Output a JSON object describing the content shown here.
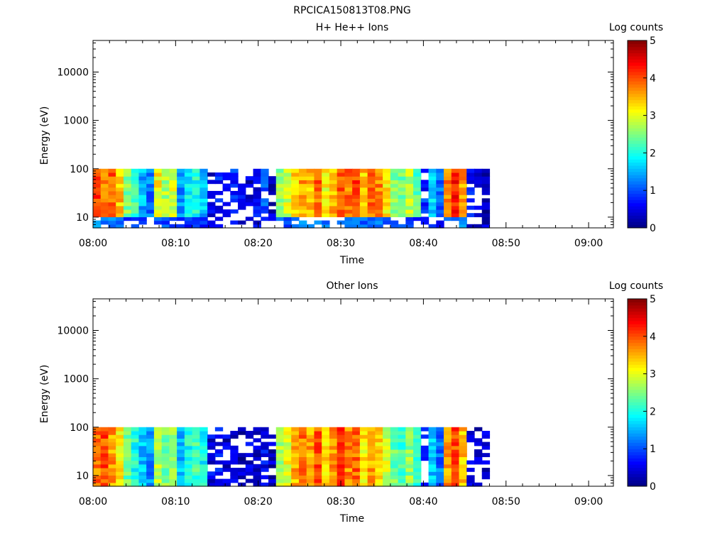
{
  "figure": {
    "title": "RPCICA150813T08.PNG"
  },
  "colorbar": {
    "label": "Log counts",
    "ticks": [
      "0",
      "1",
      "2",
      "3",
      "4",
      "5"
    ],
    "range": [
      0,
      5
    ],
    "colormap": "jet"
  },
  "chart_data": [
    {
      "type": "heatmap",
      "title": "H+ He++ Ions",
      "xlabel": "Time",
      "ylabel": "Energy (eV)",
      "x_ticks": [
        "08:00",
        "08:10",
        "08:20",
        "08:30",
        "08:40",
        "08:50",
        "09:00"
      ],
      "y_ticks": [
        "10",
        "100",
        "1000",
        "10000"
      ],
      "y_scale": "log",
      "ylim": [
        6,
        45000
      ],
      "xlim": [
        "08:00",
        "09:03"
      ],
      "energy_range_ev": [
        6,
        100
      ],
      "data_time_range": [
        "08:00",
        "08:48"
      ],
      "columns_log_counts": [
        4.1,
        3.8,
        3.9,
        3.4,
        2.5,
        2.2,
        1.5,
        1.2,
        3.1,
        2.7,
        2.9,
        1.4,
        1.8,
        2.0,
        1.6,
        0.4,
        0.7,
        0.6,
        0.8,
        0.5,
        0.4,
        0.6,
        1.0,
        0.4,
        2.6,
        2.9,
        3.3,
        3.6,
        3.4,
        3.9,
        3.1,
        3.5,
        4.0,
        3.8,
        4.1,
        3.4,
        3.9,
        3.7,
        3.2,
        2.6,
        2.4,
        2.8,
        2.3,
        0.8,
        1.7,
        1.1,
        3.8,
        4.3,
        3.6,
        0.6,
        0.5,
        0.3
      ],
      "color_scale": "Log counts"
    },
    {
      "type": "heatmap",
      "title": "Other Ions",
      "xlabel": "Time",
      "ylabel": "Energy (eV)",
      "x_ticks": [
        "08:00",
        "08:10",
        "08:20",
        "08:30",
        "08:40",
        "08:50",
        "09:00"
      ],
      "y_ticks": [
        "10",
        "100",
        "1000",
        "10000"
      ],
      "y_scale": "log",
      "ylim": [
        6,
        45000
      ],
      "xlim": [
        "08:00",
        "09:03"
      ],
      "energy_range_ev": [
        6,
        100
      ],
      "data_time_range": [
        "08:00",
        "08:48"
      ],
      "columns_log_counts": [
        3.8,
        4.0,
        3.6,
        3.2,
        2.4,
        2.0,
        1.6,
        1.3,
        2.8,
        2.5,
        2.6,
        1.6,
        2.0,
        2.2,
        1.9,
        0.5,
        0.6,
        0.4,
        0.5,
        0.3,
        0.5,
        0.4,
        0.6,
        0.3,
        2.7,
        3.0,
        3.5,
        3.8,
        3.6,
        4.0,
        3.3,
        3.6,
        4.1,
        3.7,
        3.9,
        3.2,
        3.6,
        3.3,
        2.9,
        2.4,
        2.2,
        2.6,
        2.1,
        0.9,
        1.6,
        1.2,
        3.6,
        4.0,
        3.4,
        0.5,
        0.4,
        0.4
      ],
      "color_scale": "Log counts"
    }
  ]
}
